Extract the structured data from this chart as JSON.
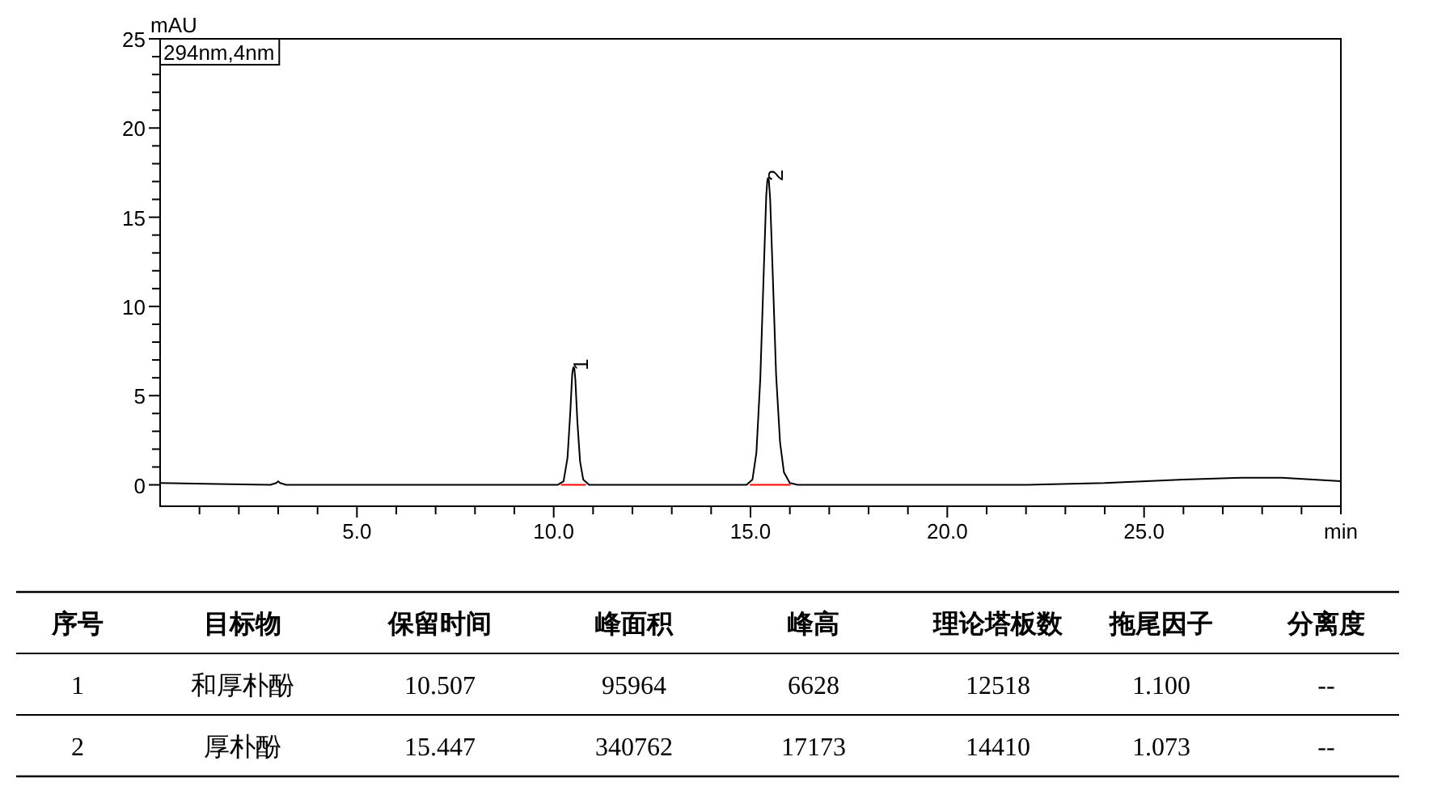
{
  "chart_data": {
    "type": "line",
    "ylabel": "mAU",
    "xlabel": "min",
    "xlim": [
      0,
      30
    ],
    "ylim": [
      -1.2,
      25
    ],
    "xticks": [
      {
        "value": 1,
        "label": null
      },
      {
        "value": 2,
        "label": null
      },
      {
        "value": 3,
        "label": null
      },
      {
        "value": 4,
        "label": null
      },
      {
        "value": 5,
        "label": "5.0"
      },
      {
        "value": 6,
        "label": null
      },
      {
        "value": 7,
        "label": null
      },
      {
        "value": 8,
        "label": null
      },
      {
        "value": 9,
        "label": null
      },
      {
        "value": 10,
        "label": "10.0"
      },
      {
        "value": 11,
        "label": null
      },
      {
        "value": 12,
        "label": null
      },
      {
        "value": 13,
        "label": null
      },
      {
        "value": 14,
        "label": null
      },
      {
        "value": 15,
        "label": "15.0"
      },
      {
        "value": 16,
        "label": null
      },
      {
        "value": 17,
        "label": null
      },
      {
        "value": 18,
        "label": null
      },
      {
        "value": 19,
        "label": null
      },
      {
        "value": 20,
        "label": "20.0"
      },
      {
        "value": 21,
        "label": null
      },
      {
        "value": 22,
        "label": null
      },
      {
        "value": 23,
        "label": null
      },
      {
        "value": 24,
        "label": null
      },
      {
        "value": 25,
        "label": "25.0"
      },
      {
        "value": 26,
        "label": null
      },
      {
        "value": 27,
        "label": null
      },
      {
        "value": 28,
        "label": null
      },
      {
        "value": 29,
        "label": null
      },
      {
        "value": 30,
        "label": null
      }
    ],
    "yticks": [
      0,
      {
        "value": 1,
        "label": null
      },
      {
        "value": 2,
        "label": null
      },
      {
        "value": 3,
        "label": null
      },
      {
        "value": 4,
        "label": null
      },
      5,
      {
        "value": 6,
        "label": null
      },
      {
        "value": 7,
        "label": null
      },
      {
        "value": 8,
        "label": null
      },
      {
        "value": 9,
        "label": null
      },
      10,
      {
        "value": 11,
        "label": null
      },
      {
        "value": 12,
        "label": null
      },
      {
        "value": 13,
        "label": null
      },
      {
        "value": 14,
        "label": null
      },
      15,
      {
        "value": 16,
        "label": null
      },
      {
        "value": 17,
        "label": null
      },
      {
        "value": 18,
        "label": null
      },
      {
        "value": 19,
        "label": null
      },
      20,
      {
        "value": 21,
        "label": null
      },
      {
        "value": 22,
        "label": null
      },
      {
        "value": 23,
        "label": null
      },
      {
        "value": 24,
        "label": null
      },
      25
    ],
    "marker": "none",
    "line_style": "solid",
    "series": [
      {
        "color": "#000000",
        "x": [
          0,
          2.8,
          2.95,
          3.0,
          3.05,
          3.2,
          6,
          9,
          10.1,
          10.25,
          10.35,
          10.42,
          10.47,
          10.49,
          10.507,
          10.525,
          10.55,
          10.6,
          10.67,
          10.75,
          10.9,
          12,
          14.9,
          15.05,
          15.15,
          15.25,
          15.33,
          15.4,
          15.43,
          15.447,
          15.465,
          15.5,
          15.57,
          15.65,
          15.75,
          15.85,
          16.0,
          16.2,
          20,
          22,
          24,
          26,
          27.5,
          28.5,
          30
        ],
        "values": [
          0.1,
          0.0,
          0.1,
          0.2,
          0.1,
          0.0,
          0.0,
          0.0,
          0.0,
          0.2,
          1.5,
          4.0,
          6.2,
          6.5,
          6.6,
          6.5,
          5.9,
          3.6,
          1.3,
          0.3,
          0.0,
          0.0,
          0.0,
          0.3,
          1.8,
          6.0,
          11.5,
          16.2,
          17.1,
          17.2,
          17.1,
          16.0,
          11.5,
          6.2,
          2.4,
          0.7,
          0.1,
          0.0,
          0.0,
          0.0,
          0.1,
          0.3,
          0.4,
          0.4,
          0.2
        ]
      },
      {
        "color": "#ff0000",
        "x": [
          10.2,
          10.8,
          10.81,
          15.0,
          16.0
        ],
        "values": [
          0,
          0,
          null,
          0,
          0
        ]
      }
    ],
    "annotations": [
      "294nm,4nm",
      {
        "text": "1",
        "x": 10.507,
        "y": 6.6
      },
      {
        "text": "2",
        "x": 15.447,
        "y": 17.2
      },
      "序号",
      "目标物",
      "保留时间",
      "峰面积",
      "峰高",
      "理论塔板数",
      "拖尾因子",
      "分离度",
      "1",
      "和厚朴酚",
      "10.507",
      "95964",
      "6628",
      "12518",
      "1.100",
      "--",
      "2",
      "厚朴酚",
      "15.447",
      "340762",
      "17173",
      "14410",
      "1.073",
      "--"
    ]
  }
}
